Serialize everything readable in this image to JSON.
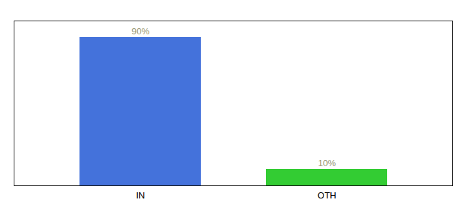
{
  "chart_data": {
    "type": "bar",
    "categories": [
      "IN",
      "OTH"
    ],
    "values": [
      90,
      10
    ],
    "value_labels": [
      "90%",
      "10%"
    ],
    "colors": [
      "#4472db",
      "#33cc33"
    ],
    "ylim": [
      0,
      100
    ],
    "data_labels": true,
    "tick_labels": "x"
  }
}
